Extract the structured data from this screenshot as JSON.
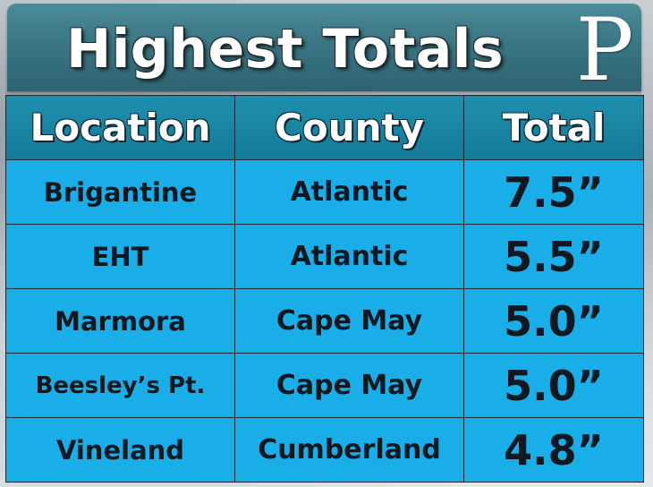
{
  "title": "Highest Totals",
  "logo_letter": "P",
  "table": {
    "headers": [
      "Location",
      "County",
      "Total"
    ],
    "rows": [
      {
        "location": "Brigantine",
        "county": "Atlantic",
        "total": "7.5”"
      },
      {
        "location": "EHT",
        "county": "Atlantic",
        "total": "5.5”"
      },
      {
        "location": "Marmora",
        "county": "Cape May",
        "total": "5.0”"
      },
      {
        "location": "Beesley’s Pt.",
        "county": "Cape May",
        "total": "5.0”"
      },
      {
        "location": "Vineland",
        "county": "Cumberland",
        "total": "4.8”"
      }
    ]
  },
  "colors": {
    "header_bar": "#3a7684",
    "table_header": "#137a98",
    "row_fill": "#19aee8",
    "grid_line": "#1c2b33"
  }
}
